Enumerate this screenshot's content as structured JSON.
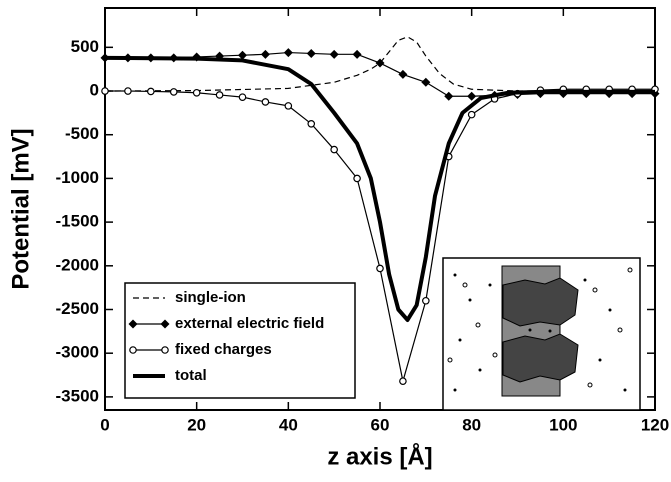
{
  "chart_data": {
    "type": "line",
    "xlabel": "z axis [Å]",
    "ylabel": "Potential [mV]",
    "xlim": [
      0,
      120
    ],
    "xticks": [
      0,
      20,
      40,
      60,
      80,
      100,
      120
    ],
    "ylim": [
      -3650,
      950
    ],
    "yticks": [
      -3500,
      -3000,
      -2500,
      -2000,
      -1500,
      -1000,
      -500,
      0,
      500
    ],
    "legend": "lower left",
    "series": [
      {
        "name": "single-ion",
        "color": "#000000",
        "dash": "6,4",
        "width": 1.2,
        "marker": "none",
        "x": [
          0,
          20,
          40,
          50,
          55,
          58,
          60,
          62,
          64,
          66,
          68,
          70,
          73,
          76,
          80,
          90,
          100,
          120
        ],
        "values": [
          0,
          5,
          30,
          100,
          180,
          250,
          320,
          450,
          580,
          620,
          560,
          400,
          200,
          80,
          20,
          0,
          0,
          0
        ]
      },
      {
        "name": "external electric field",
        "color": "#000000",
        "width": 1.2,
        "marker": "diamond",
        "x": [
          0,
          5,
          10,
          15,
          20,
          25,
          30,
          35,
          40,
          45,
          50,
          55,
          60,
          65,
          70,
          75,
          80,
          85,
          90,
          95,
          100,
          105,
          110,
          115,
          120
        ],
        "values": [
          380,
          380,
          380,
          380,
          390,
          400,
          410,
          420,
          440,
          430,
          420,
          420,
          320,
          190,
          100,
          -60,
          -60,
          -50,
          -40,
          -30,
          -30,
          -30,
          -30,
          -30,
          -30
        ]
      },
      {
        "name": "fixed charges",
        "color": "#000000",
        "width": 1.2,
        "marker": "circle",
        "x": [
          0,
          5,
          10,
          15,
          20,
          25,
          30,
          35,
          40,
          45,
          50,
          55,
          60,
          65,
          70,
          75,
          80,
          85,
          90,
          95,
          100,
          105,
          110,
          115,
          120
        ],
        "values": [
          0,
          0,
          -5,
          -10,
          -20,
          -45,
          -70,
          -125,
          -170,
          -375,
          -670,
          -1000,
          -2030,
          -3320,
          -2400,
          -750,
          -270,
          -90,
          -30,
          10,
          20,
          20,
          20,
          20,
          20
        ]
      },
      {
        "name": "total",
        "color": "#000000",
        "width": 4,
        "marker": "none",
        "x": [
          0,
          20,
          30,
          40,
          45,
          50,
          55,
          58,
          60,
          62,
          64,
          66,
          68,
          70,
          72,
          75,
          78,
          82,
          88,
          95,
          120
        ],
        "values": [
          380,
          370,
          350,
          250,
          80,
          -250,
          -600,
          -1000,
          -1500,
          -2100,
          -2500,
          -2620,
          -2450,
          -1900,
          -1200,
          -600,
          -250,
          -80,
          -20,
          -10,
          -10
        ]
      }
    ]
  }
}
